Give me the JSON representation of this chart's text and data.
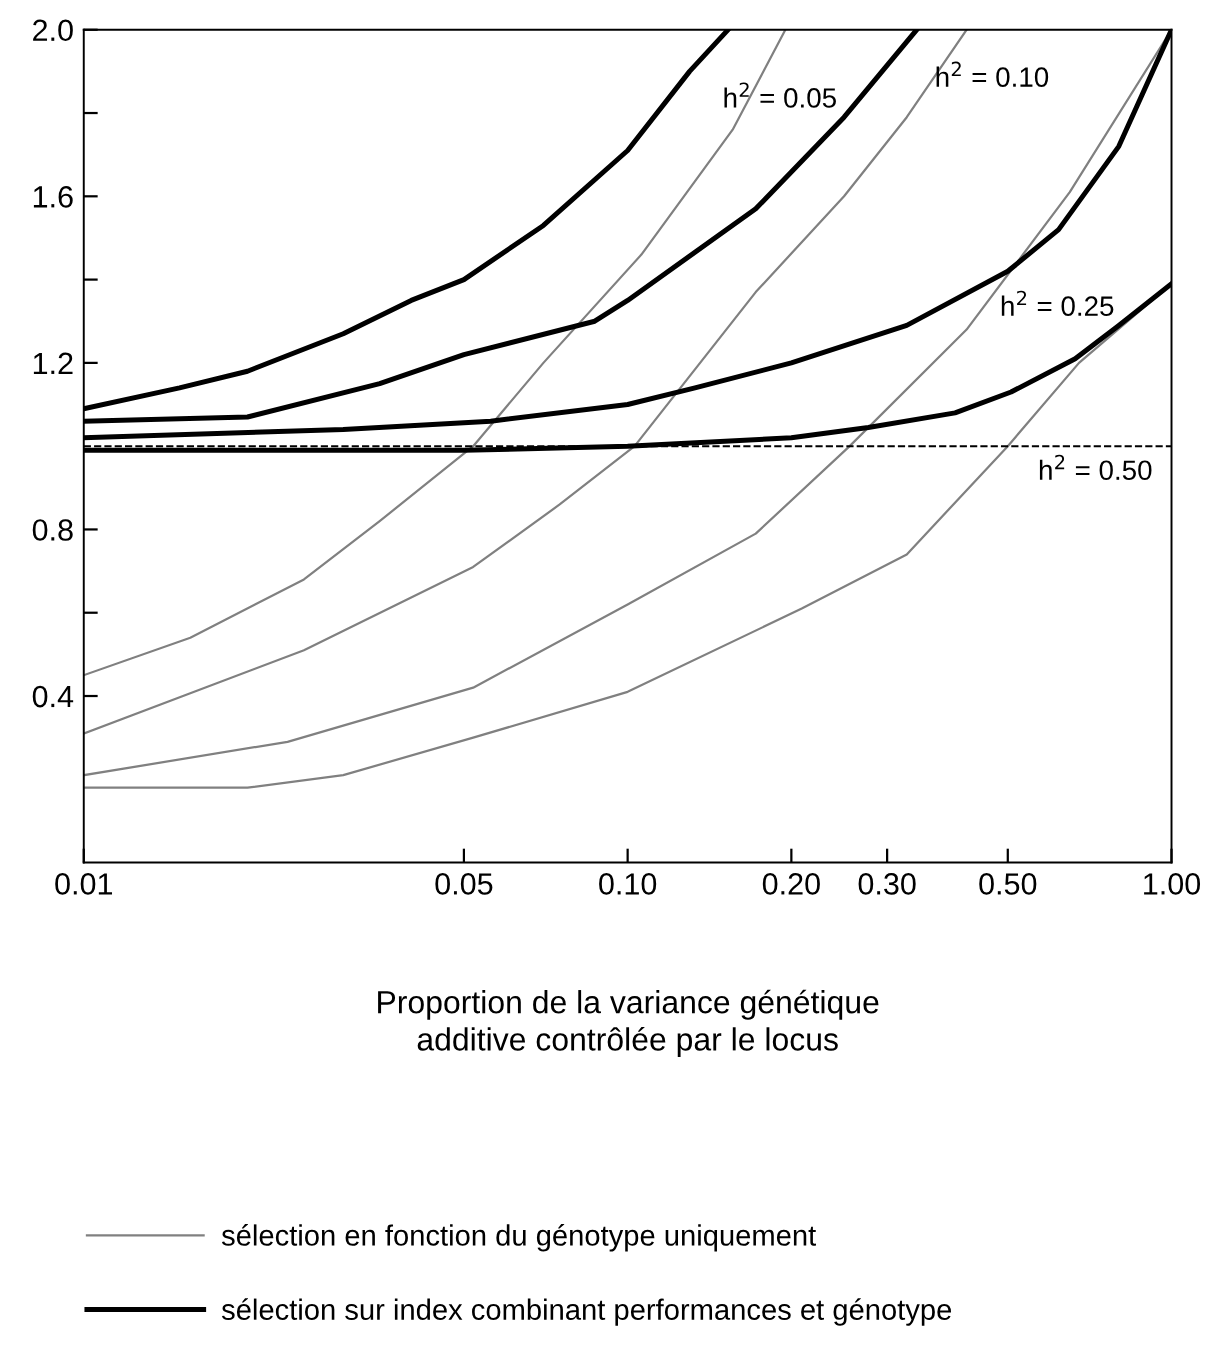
{
  "chart_data": {
    "type": "line",
    "xlabel": "Proportion de la variance génétique\nadditive contrôlée par le locus",
    "log": "x",
    "xlim": [
      0.01,
      1.0
    ],
    "xticks": [
      {
        "value": 0.01,
        "label": "0.01"
      },
      {
        "value": 0.05,
        "label": "0.05"
      },
      {
        "value": 0.1,
        "label": "0.10"
      },
      {
        "value": 0.2,
        "label": "0.20"
      },
      {
        "value": 0.3,
        "label": "0.30"
      },
      {
        "value": 0.5,
        "label": "0.50"
      },
      {
        "value": 1.0,
        "label": "1.00"
      }
    ],
    "ylim": [
      0,
      2.0
    ],
    "yticks": [
      {
        "value": 0.4,
        "label": "0.4"
      },
      {
        "value": 0.6,
        "label": null
      },
      {
        "value": 0.8,
        "label": "0.8"
      },
      {
        "value": 1.2,
        "label": "1.2"
      },
      {
        "value": 1.4,
        "label": null
      },
      {
        "value": 1.6,
        "label": "1.6"
      },
      {
        "value": 1.8,
        "label": null
      },
      {
        "value": 2.0,
        "label": "2.0"
      }
    ],
    "grid": false,
    "legend": "bottom",
    "marker": "none",
    "line_style": "solid",
    "ref_lines": [
      {
        "axis": "y",
        "value": 1.0,
        "label": null,
        "color": "#000000",
        "line_style": "dashed"
      }
    ],
    "series": [
      {
        "name": "sélection en fonction du génotype uniquement",
        "color": "#808080",
        "x": [
          0.01,
          0.0157,
          0.0254,
          0.035,
          0.052,
          0.07,
          0.106,
          0.156,
          0.195
        ],
        "values": [
          0.45,
          0.54,
          0.68,
          0.82,
          1.0,
          1.2,
          1.46,
          1.76,
          2.0
        ]
      },
      {
        "color": "#808080",
        "x": [
          0.01,
          0.0254,
          0.052,
          0.075,
          0.103,
          0.172,
          0.25,
          0.326,
          0.42
        ],
        "values": [
          0.31,
          0.51,
          0.71,
          0.86,
          1.0,
          1.37,
          1.6,
          1.79,
          2.0
        ]
      },
      {
        "color": "#808080",
        "x": [
          0.01,
          0.0237,
          0.052,
          0.1,
          0.172,
          0.256,
          0.42,
          0.65,
          1.0
        ],
        "values": [
          0.21,
          0.29,
          0.42,
          0.62,
          0.79,
          1.0,
          1.28,
          1.61,
          2.0
        ]
      },
      {
        "color": "#808080",
        "x": [
          0.01,
          0.02,
          0.03,
          0.052,
          0.1,
          0.209,
          0.326,
          0.5,
          0.676,
          1.0
        ],
        "values": [
          0.18,
          0.18,
          0.21,
          0.3,
          0.41,
          0.61,
          0.74,
          1.0,
          1.2,
          1.39
        ]
      },
      {
        "name": "sélection sur index combinant performances et génotype",
        "color": "#000000",
        "x": [
          0.01,
          0.015,
          0.02,
          0.03,
          0.04,
          0.05,
          0.07,
          0.1,
          0.13,
          0.153
        ],
        "values": [
          1.09,
          1.14,
          1.18,
          1.27,
          1.35,
          1.4,
          1.53,
          1.71,
          1.9,
          2.0
        ]
      },
      {
        "color": "#000000",
        "x": [
          0.01,
          0.02,
          0.035,
          0.05,
          0.087,
          0.1,
          0.172,
          0.25,
          0.34
        ],
        "values": [
          1.06,
          1.07,
          1.15,
          1.22,
          1.3,
          1.35,
          1.57,
          1.79,
          2.0
        ]
      },
      {
        "color": "#000000",
        "x": [
          0.01,
          0.03,
          0.056,
          0.1,
          0.133,
          0.2,
          0.326,
          0.5,
          0.62,
          0.8,
          1.0
        ],
        "values": [
          1.02,
          1.04,
          1.06,
          1.1,
          1.14,
          1.2,
          1.29,
          1.42,
          1.52,
          1.72,
          2.0
        ]
      },
      {
        "color": "#000000",
        "x": [
          0.01,
          0.05,
          0.1,
          0.2,
          0.277,
          0.4,
          0.507,
          0.665,
          0.8,
          1.0
        ],
        "values": [
          0.99,
          0.99,
          1.0,
          1.02,
          1.045,
          1.08,
          1.13,
          1.21,
          1.29,
          1.39
        ]
      }
    ],
    "annotations": [
      "h$^{2}$ = 0.05",
      "h$^{2}$ = 0.10",
      "h$^{2}$ = 0.25",
      "h$^{2}$ = 0.50"
    ]
  }
}
